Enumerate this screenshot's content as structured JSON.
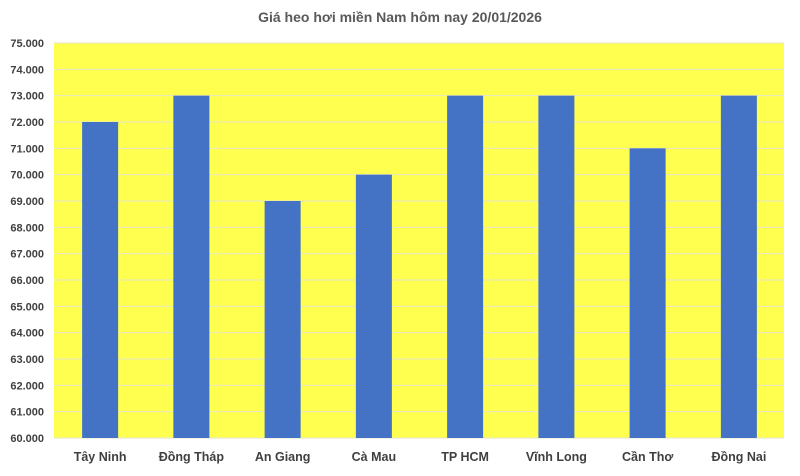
{
  "chart_data": {
    "type": "bar",
    "title": "Giá heo hơi miền Nam hôm nay 20/01/2026",
    "categories": [
      "Tây Ninh",
      "Đồng Tháp",
      "An Giang",
      "Cà Mau",
      "TP HCM",
      "Vĩnh Long",
      "Cần Thơ",
      "Đồng Nai"
    ],
    "values": [
      72000,
      73000,
      69000,
      70000,
      73000,
      73000,
      71000,
      73000
    ],
    "ylim": [
      60000,
      75000
    ],
    "ytick_step": 1000,
    "ytick_labels": [
      "60.000",
      "61.000",
      "62.000",
      "63.000",
      "64.000",
      "65.000",
      "66.000",
      "67.000",
      "68.000",
      "69.000",
      "70.000",
      "71.000",
      "72.000",
      "73.000",
      "74.000",
      "75.000"
    ],
    "xlabel": "",
    "ylabel": "",
    "grid": true,
    "legend": "none",
    "colors": {
      "bar": "#4472C4",
      "plot_background": "#FFFF4F",
      "gridline": "#E6E6C8"
    }
  }
}
